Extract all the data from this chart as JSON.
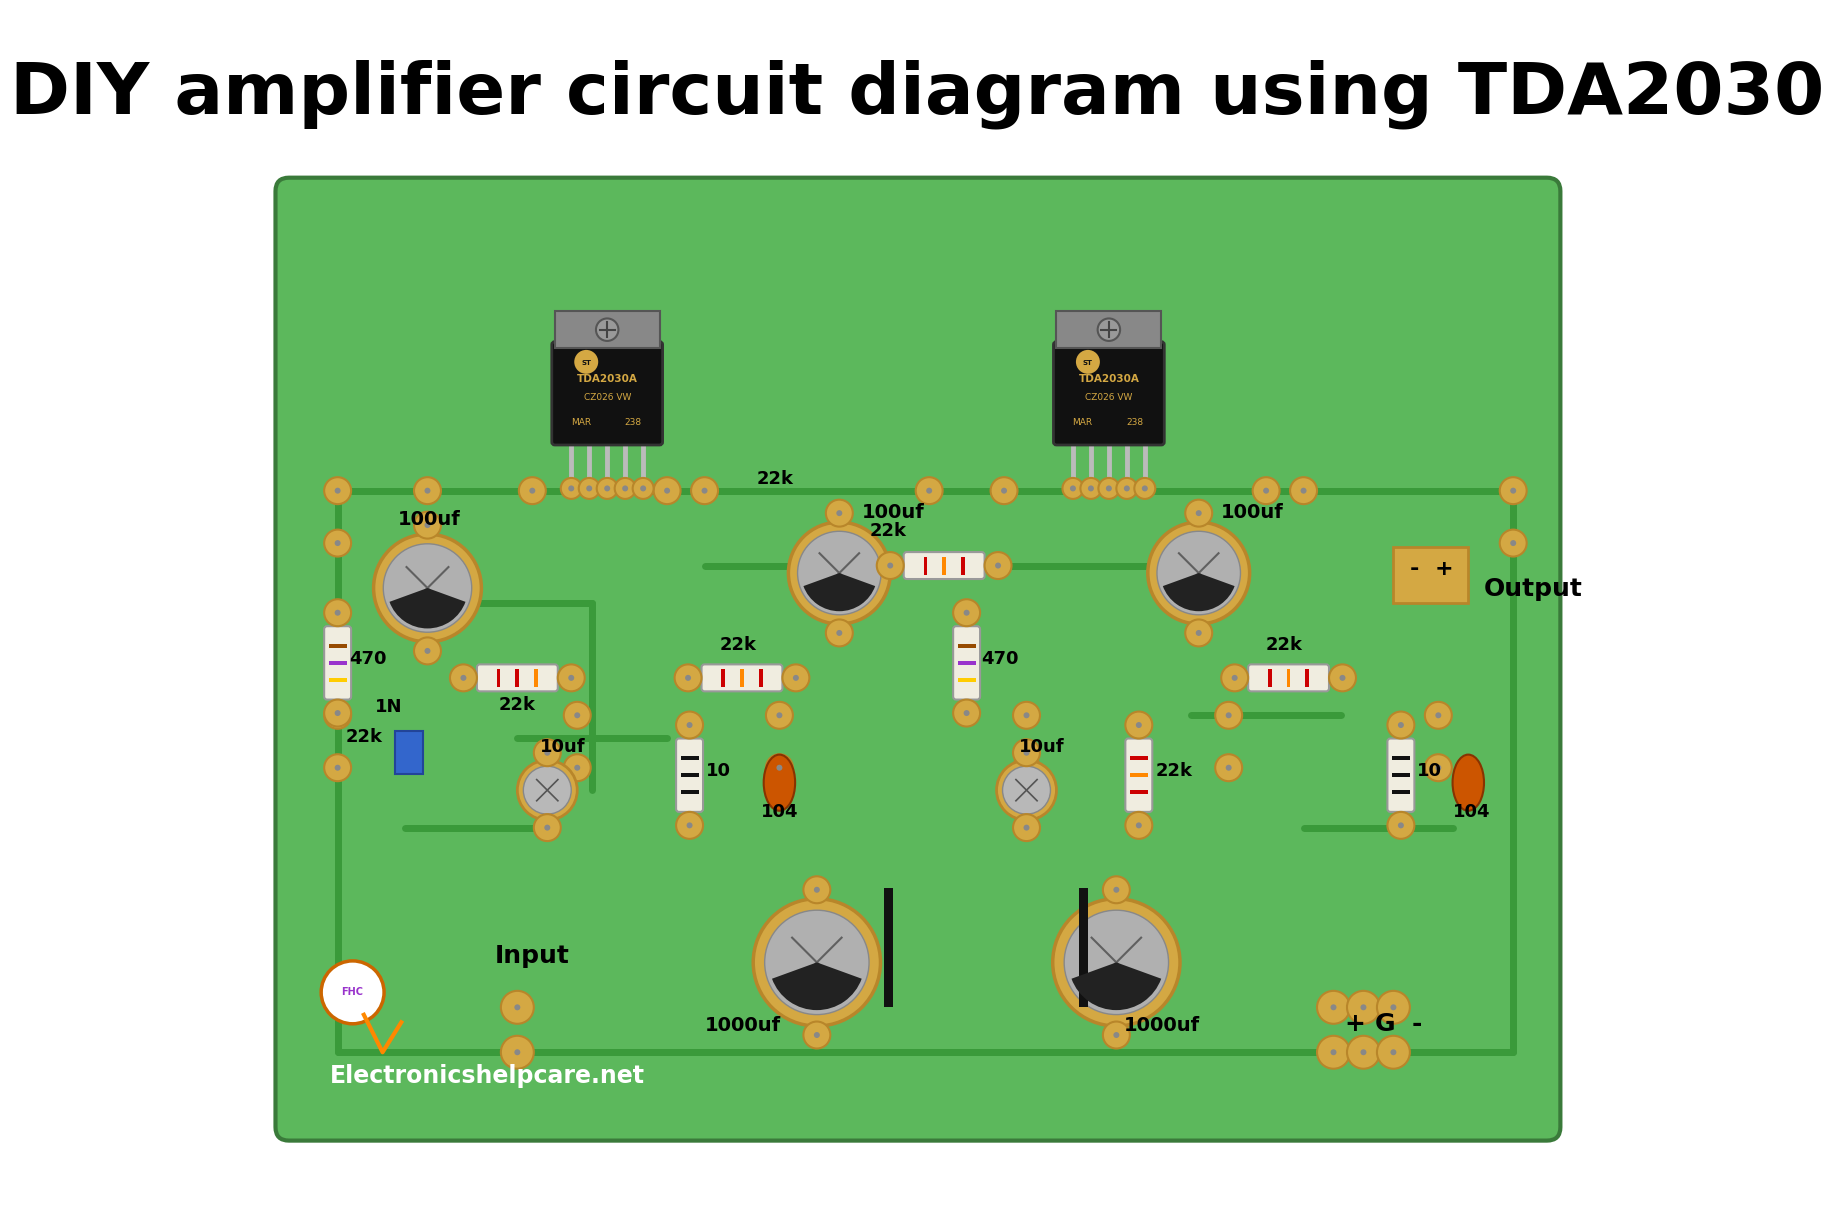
{
  "title": "DIY amplifier circuit diagram using TDA2030",
  "title_fontsize": 52,
  "bg_color": "#ffffff",
  "board_color": "#5cb85c",
  "board_border_color": "#3a7a3a",
  "pad_color": "#d4a843",
  "pad_border": "#b8862a",
  "ic_body_color": "#1a1a1a",
  "ic_pin_color": "#c0c0c0",
  "resistor_body": "#f5f0e0",
  "cap_large_rim": "#d4a843",
  "cap_large_body": "#c8c8c8",
  "website": "Electronicshelpcare.net",
  "input_label": "Input",
  "output_label": "Output",
  "component_labels": [
    "100uf",
    "470",
    "22k",
    "22k",
    "22k",
    "100uf",
    "22k",
    "1N",
    "10uf",
    "10",
    "104",
    "470",
    "1000uf",
    "100uf",
    "10uf",
    "10",
    "104",
    "22k",
    "1000uf",
    "22k",
    "10"
  ]
}
